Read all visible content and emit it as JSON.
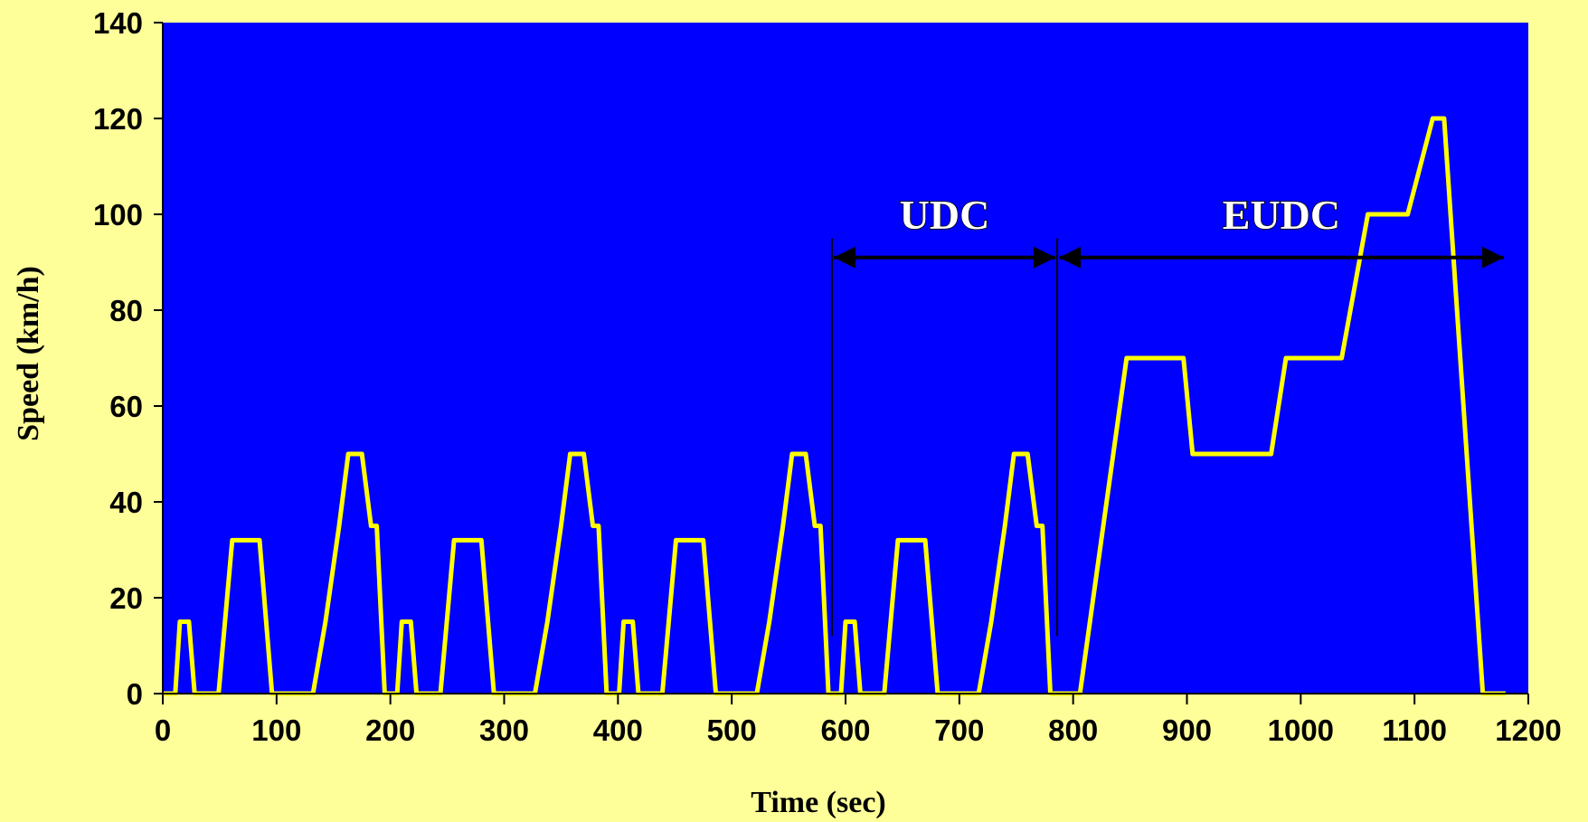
{
  "chart_data": {
    "type": "line",
    "title": "",
    "xlabel": "Time (sec)",
    "ylabel": "Speed (km/h)",
    "xlim": [
      0,
      1200
    ],
    "ylim": [
      0,
      140
    ],
    "xticks": [
      0,
      100,
      200,
      300,
      400,
      500,
      600,
      700,
      800,
      900,
      1000,
      1100,
      1200
    ],
    "yticks": [
      0,
      20,
      40,
      60,
      80,
      100,
      120,
      140
    ],
    "grid": false,
    "colors": {
      "background": "#FFFF99",
      "plot_area": "#0000FF",
      "series": "#FFFF00"
    },
    "series": [
      {
        "name": "",
        "points": [
          [
            0,
            0
          ],
          [
            11,
            0
          ],
          [
            15,
            15
          ],
          [
            23,
            15
          ],
          [
            28,
            0
          ],
          [
            49,
            0
          ],
          [
            61,
            15
          ],
          [
            85,
            32
          ],
          [
            96,
            32
          ],
          [
            112,
            10
          ],
          [
            117,
            0
          ],
          [
            132,
            0
          ],
          [
            144,
            15
          ],
          [
            155,
            35
          ],
          [
            163,
            50
          ],
          [
            175,
            50
          ],
          [
            183,
            35
          ],
          [
            195,
            35
          ],
          [
            206,
            0
          ],
          [
            195,
            0
          ],
          [
            0,
            0
          ],
          [
            11,
            0
          ],
          [
            15,
            15
          ],
          [
            23,
            15
          ],
          [
            28,
            0
          ],
          [
            49,
            0
          ],
          [
            61,
            15
          ],
          [
            85,
            32
          ],
          [
            96,
            32
          ],
          [
            112,
            10
          ],
          [
            117,
            0
          ]
        ]
      }
    ],
    "annotations": [
      {
        "label": "UDC",
        "x_start": 588,
        "x_end": 786
      },
      {
        "label": "EUDC",
        "x_start": 786,
        "x_end": 1180
      }
    ]
  },
  "cycle": {
    "ece15_segments": [
      [
        [
          0,
          0
        ],
        [
          11,
          0
        ],
        [
          15,
          15
        ],
        [
          23,
          15
        ],
        [
          28,
          0
        ],
        [
          49,
          0
        ],
        [
          61,
          15
        ],
        [
          85,
          32
        ],
        [
          96,
          32
        ],
        [
          112,
          10
        ],
        [
          117,
          0
        ],
        [
          132,
          0
        ],
        [
          144,
          15
        ],
        [
          155,
          35
        ],
        [
          163,
          50
        ],
        [
          175,
          50
        ],
        [
          183,
          35
        ],
        [
          195,
          35
        ],
        [
          206,
          0
        ],
        [
          195,
          0
        ]
      ]
    ],
    "eudc_points": [
      [
        786,
        0
      ],
      [
        806,
        0
      ],
      [
        847,
        70
      ],
      [
        897,
        70
      ],
      [
        905,
        50
      ],
      [
        974,
        50
      ],
      [
        987,
        70
      ],
      [
        1036,
        70
      ],
      [
        1059,
        100
      ],
      [
        1094,
        100
      ],
      [
        1116,
        120
      ],
      [
        1126,
        120
      ],
      [
        1160,
        0
      ],
      [
        1180,
        0
      ]
    ]
  }
}
